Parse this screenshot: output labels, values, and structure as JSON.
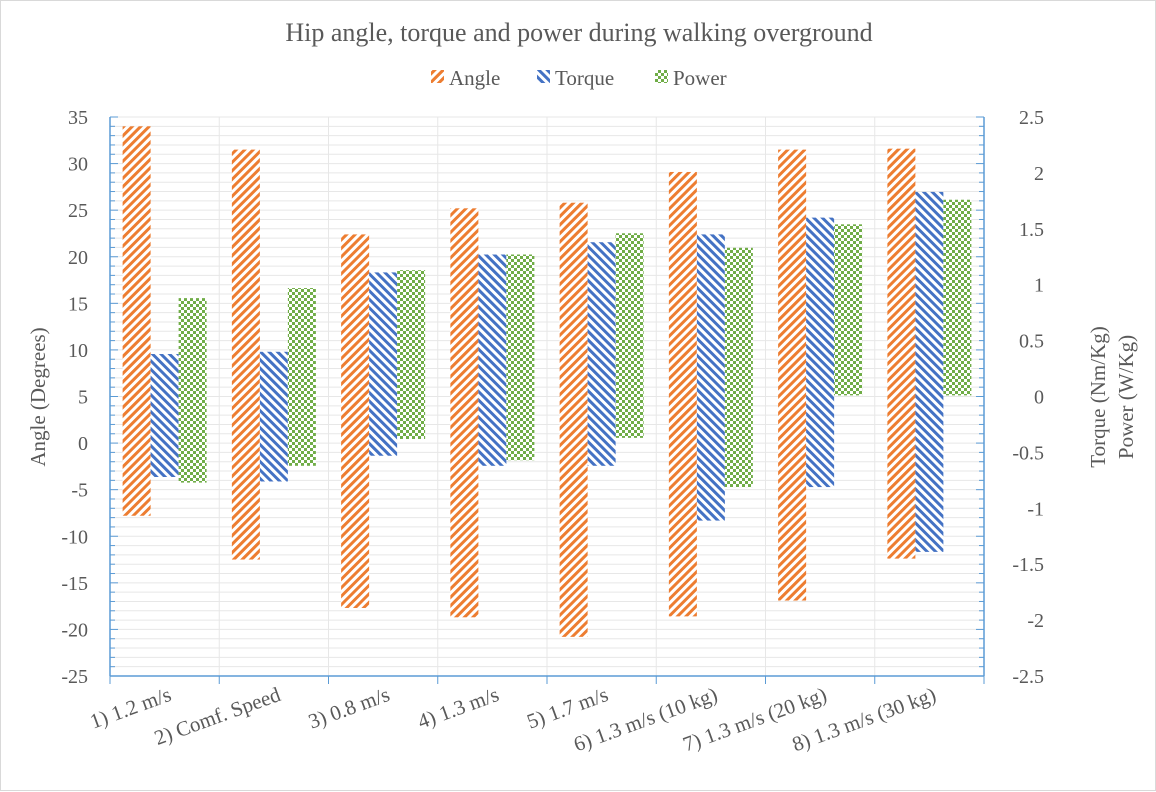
{
  "chart_data": {
    "type": "bar",
    "subtype": "floating-range",
    "title": "Hip  angle, torque and power during walking overground",
    "categories": [
      "1) 1.2 m/s",
      "2) Comf. Speed",
      "3) 0.8 m/s",
      "4) 1.3 m/s",
      "5) 1.7 m/s",
      "6) 1.3 m/s (10 kg)",
      "7) 1.3 m/s (20 kg)",
      "8) 1.3 m/s (30 kg)"
    ],
    "series": [
      {
        "name": "Angle",
        "axis": "left",
        "color": "#ed7d31",
        "pattern": "diagonal-up",
        "ranges": [
          [
            -7.8,
            34
          ],
          [
            -12.5,
            31.5
          ],
          [
            -17.7,
            22.4
          ],
          [
            -18.7,
            25.2
          ],
          [
            -20.8,
            25.8
          ],
          [
            -18.6,
            29.1
          ],
          [
            -16.9,
            31.5
          ],
          [
            -12.4,
            31.6
          ]
        ]
      },
      {
        "name": "Torque",
        "axis": "right",
        "color": "#4472c4",
        "pattern": "diagonal-down",
        "ranges": [
          [
            -0.72,
            0.38
          ],
          [
            -0.76,
            0.4
          ],
          [
            -0.53,
            1.11
          ],
          [
            -0.62,
            1.27
          ],
          [
            -0.62,
            1.38
          ],
          [
            -1.11,
            1.45
          ],
          [
            -0.81,
            1.6
          ],
          [
            -1.39,
            1.83
          ]
        ]
      },
      {
        "name": "Power",
        "axis": "right",
        "color": "#70ad47",
        "pattern": "checker",
        "ranges": [
          [
            -0.77,
            0.88
          ],
          [
            -0.62,
            0.97
          ],
          [
            -0.38,
            1.13
          ],
          [
            -0.57,
            1.27
          ],
          [
            -0.37,
            1.46
          ],
          [
            -0.81,
            1.33
          ],
          [
            0.01,
            1.54
          ],
          [
            0.01,
            1.76
          ]
        ]
      }
    ],
    "y_left": {
      "label": "Angle (Degrees)",
      "min": -25,
      "max": 35,
      "step": 5,
      "ticks": [
        "35",
        "30",
        "25",
        "20",
        "15",
        "10",
        "5",
        "0",
        "-5",
        "-10",
        "-15",
        "-20",
        "-25"
      ]
    },
    "y_right": {
      "label_line1": "Torque (Nm/Kg)",
      "label_line2": "Power (W/Kg)",
      "min": -2.5,
      "max": 2.5,
      "step": 0.5,
      "ticks": [
        "2.5",
        "2",
        "1.5",
        "1",
        "0.5",
        "0",
        "-0.5",
        "-1",
        "-1.5",
        "-2",
        "-2.5"
      ]
    },
    "legend": {
      "position": "top",
      "entries": [
        "Angle",
        "Torque",
        "Power"
      ]
    },
    "grid": true,
    "axis_color": "#5b9bd5",
    "grid_color": "#e7e7e7"
  }
}
